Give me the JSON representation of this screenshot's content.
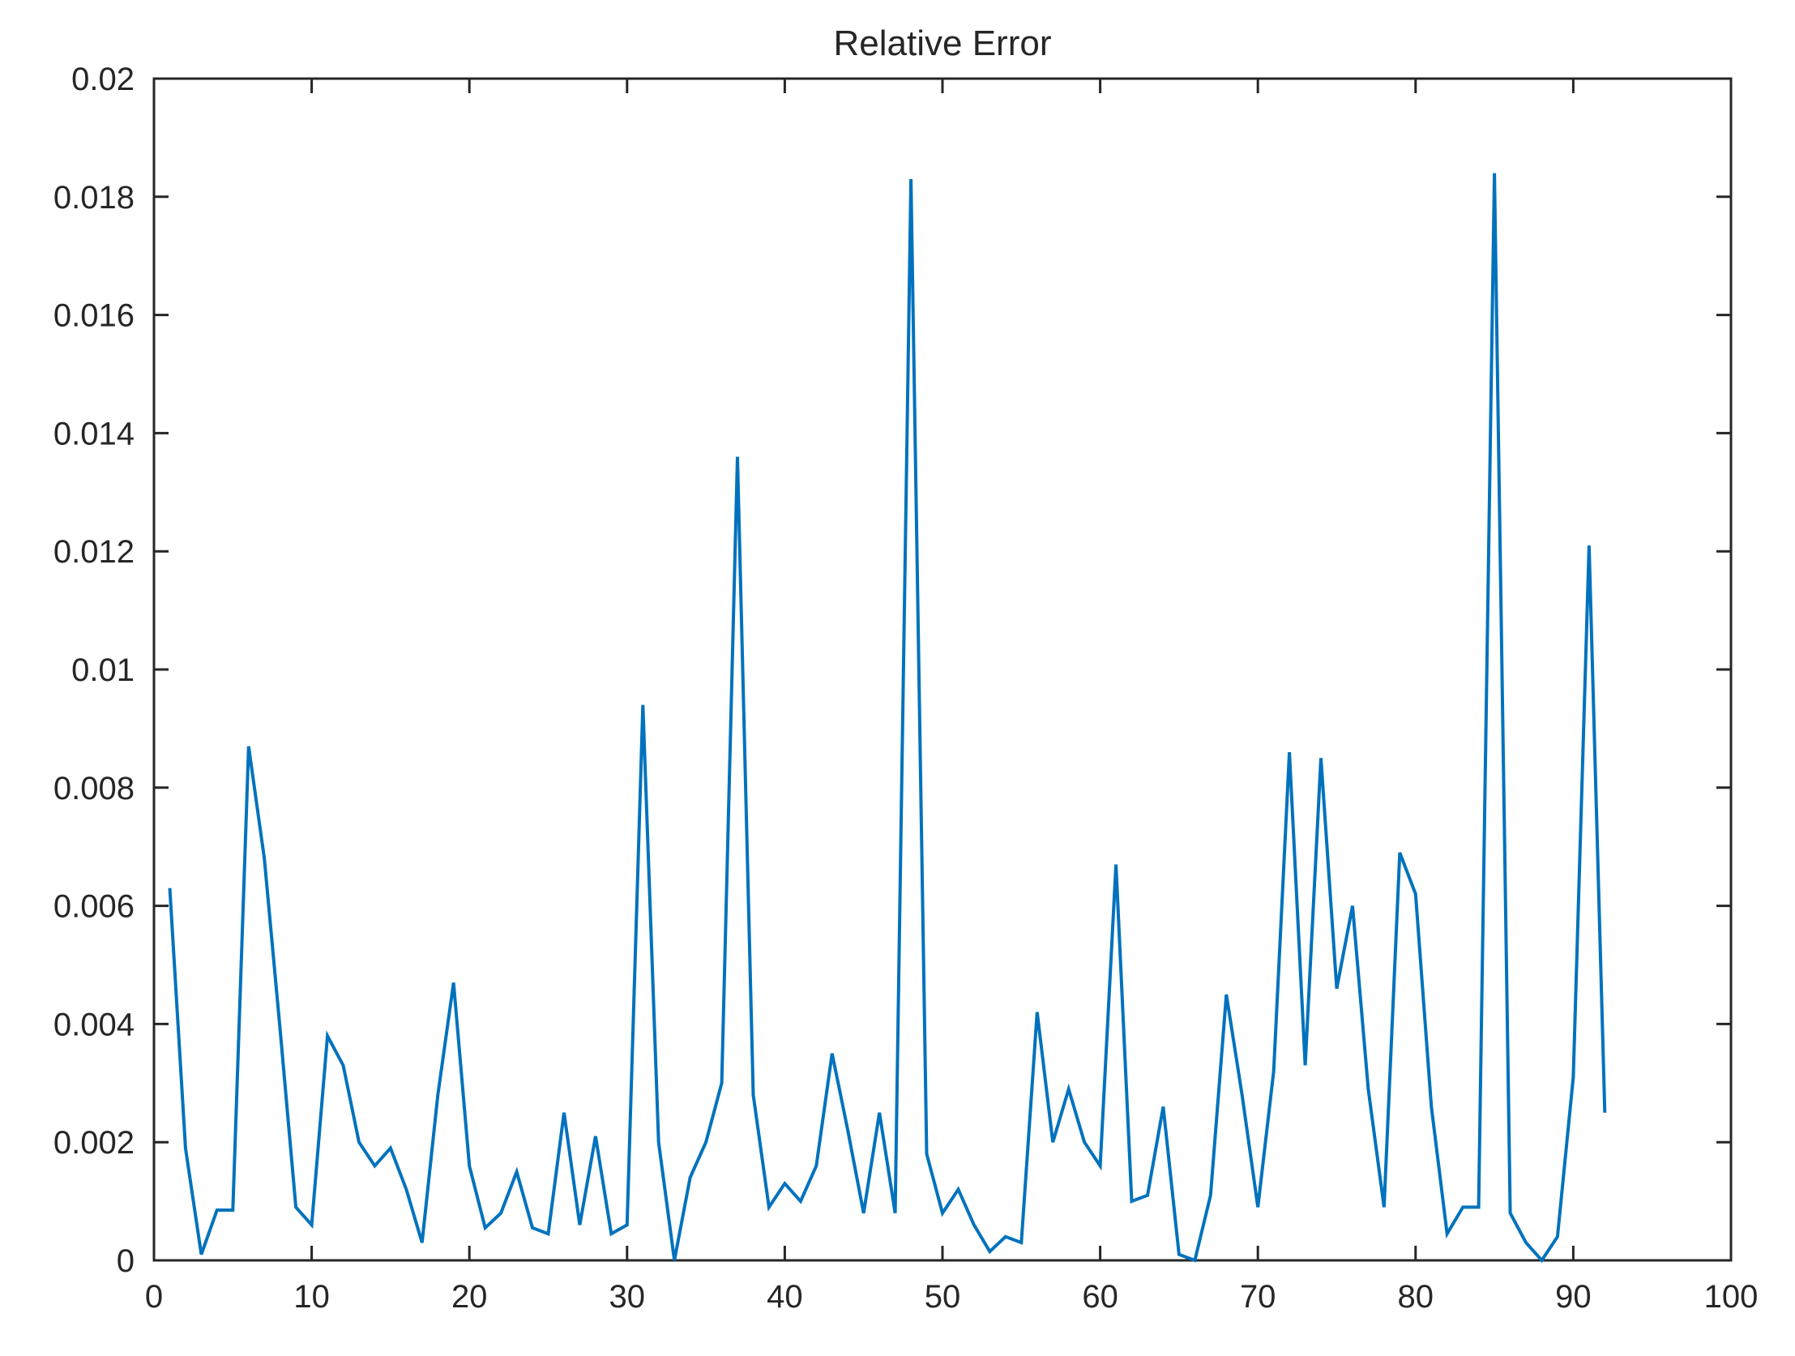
{
  "chart_data": {
    "type": "line",
    "title": "Relative Error",
    "xlabel": "",
    "ylabel": "",
    "xlim": [
      0,
      100
    ],
    "ylim": [
      0,
      0.02
    ],
    "x_ticks": [
      0,
      10,
      20,
      30,
      40,
      50,
      60,
      70,
      80,
      90,
      100
    ],
    "x_tick_labels": [
      "0",
      "10",
      "20",
      "30",
      "40",
      "50",
      "60",
      "70",
      "80",
      "90",
      "100"
    ],
    "y_ticks": [
      0,
      0.002,
      0.004,
      0.006,
      0.008,
      0.01,
      0.012,
      0.014,
      0.016,
      0.018,
      0.02
    ],
    "y_tick_labels": [
      "0",
      "0.002",
      "0.004",
      "0.006",
      "0.008",
      "0.01",
      "0.012",
      "0.014",
      "0.016",
      "0.018",
      "0.02"
    ],
    "grid": false,
    "line_color": "#0072BD",
    "series": [
      {
        "x": [
          1,
          2,
          3,
          4,
          5,
          6,
          7,
          8,
          9,
          10,
          11,
          12,
          13,
          14,
          15,
          16,
          17,
          18,
          19,
          20,
          21,
          22,
          23,
          24,
          25,
          26,
          27,
          28,
          29,
          30,
          31,
          32,
          33,
          34,
          35,
          36,
          37,
          38,
          39,
          40,
          41,
          42,
          43,
          44,
          45,
          46,
          47,
          48,
          49,
          50,
          51,
          52,
          53,
          54,
          55,
          56,
          57,
          58,
          59,
          60,
          61,
          62,
          63,
          64,
          65,
          66,
          67,
          68,
          69,
          70,
          71,
          72,
          73,
          74,
          75,
          76,
          77,
          78,
          79,
          80,
          81,
          82,
          83,
          84,
          85,
          86,
          87,
          88,
          89,
          90,
          91,
          92
        ],
        "values": [
          0.0063,
          0.0019,
          0.0001,
          0.00085,
          0.00085,
          0.0087,
          0.0068,
          0.0039,
          0.0009,
          0.0006,
          0.0038,
          0.0033,
          0.002,
          0.0016,
          0.0019,
          0.0012,
          0.0003,
          0.0028,
          0.0047,
          0.0016,
          0.00055,
          0.0008,
          0.0015,
          0.00055,
          0.00045,
          0.0025,
          0.0006,
          0.0021,
          0.00045,
          0.0006,
          0.0094,
          0.002,
          0.0,
          0.0014,
          0.002,
          0.003,
          0.0136,
          0.0028,
          0.0009,
          0.0013,
          0.001,
          0.0016,
          0.0035,
          0.0022,
          0.0008,
          0.0025,
          0.0008,
          0.0183,
          0.0018,
          0.0008,
          0.0012,
          0.0006,
          0.00015,
          0.0004,
          0.0003,
          0.0042,
          0.002,
          0.0029,
          0.002,
          0.0016,
          0.0067,
          0.001,
          0.0011,
          0.0026,
          0.0001,
          0.0,
          0.0011,
          0.0045,
          0.0028,
          0.0009,
          0.0032,
          0.0086,
          0.0033,
          0.0085,
          0.0046,
          0.006,
          0.0029,
          0.0009,
          0.0069,
          0.0062,
          0.0026,
          0.00045,
          0.0009,
          0.0009,
          0.0184,
          0.0008,
          0.0003,
          0.0,
          0.0004,
          0.0031,
          0.0121,
          0.0025
        ]
      }
    ]
  }
}
